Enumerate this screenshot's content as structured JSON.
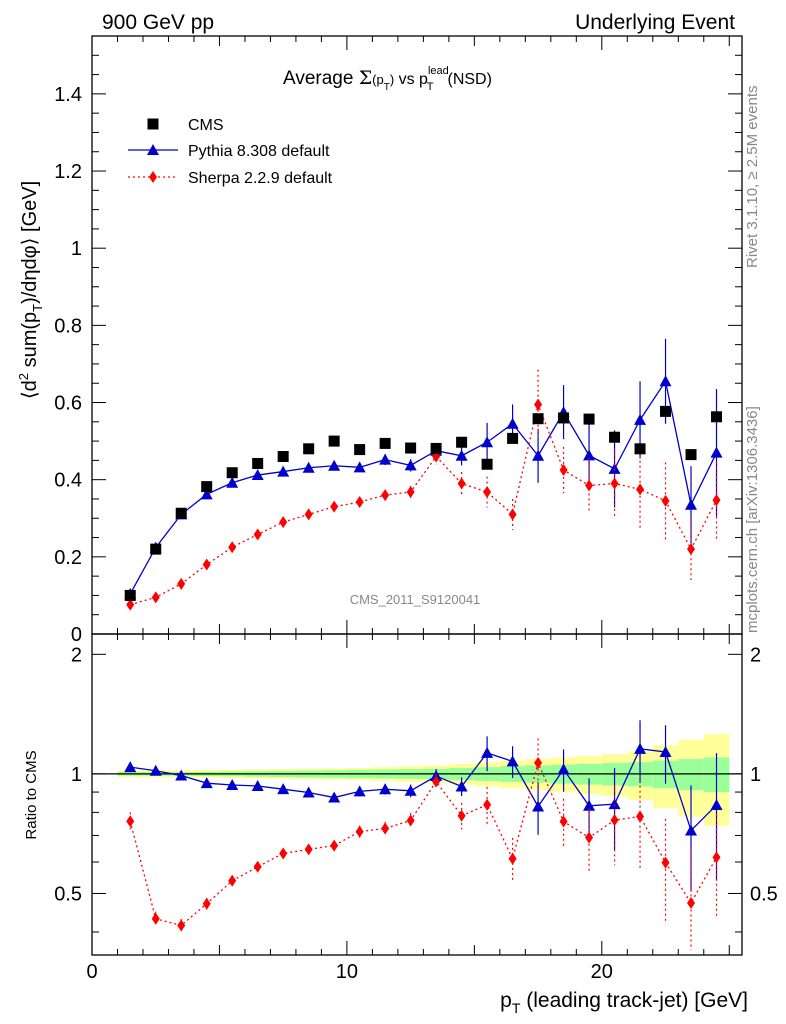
{
  "header": {
    "left": "900 GeV pp",
    "right": "Underlying Event"
  },
  "side_labels": {
    "top": "Rivet 3.1.10, ≥ 2.5M events",
    "bottom": "mcplots.cern.ch [arXiv:1306.3436]"
  },
  "watermark": "CMS_2011_S9120041",
  "chart_data": {
    "type": "scatter",
    "title": "Average Σ(pT) vs pT^lead (NSD)",
    "xlabel": "pT (leading track-jet) [GeV]",
    "ylabel": "⟨d² sum(pT)/dηdφ⟩ [GeV]",
    "ratio_ylabel": "Ratio to CMS",
    "xlim": [
      0,
      25.5
    ],
    "ylim": [
      0,
      1.55
    ],
    "ratio_ylim": [
      0.35,
      2.25
    ],
    "x_ticks": [
      0,
      10,
      20
    ],
    "y_ticks": [
      0,
      0.2,
      0.4,
      0.6,
      0.8,
      1,
      1.2,
      1.4
    ],
    "ratio_ticks": [
      0.5,
      1,
      2
    ],
    "legend_position": "top-left",
    "x": [
      1.5,
      2.5,
      3.5,
      4.5,
      5.5,
      6.5,
      7.5,
      8.5,
      9.5,
      10.5,
      11.5,
      12.5,
      13.5,
      14.5,
      15.5,
      16.5,
      17.5,
      18.5,
      19.5,
      20.5,
      21.5,
      22.5,
      23.5,
      24.5
    ],
    "series": [
      {
        "name": "CMS",
        "color": "#000000",
        "marker": "square",
        "values": [
          0.1,
          0.22,
          0.313,
          0.382,
          0.418,
          0.442,
          0.46,
          0.48,
          0.5,
          0.478,
          0.494,
          0.482,
          0.481,
          0.497,
          0.44,
          0.507,
          0.558,
          0.56,
          0.557,
          0.51,
          0.48,
          0.577,
          0.465,
          0.563
        ],
        "band_mc": [
          0.01,
          0.01,
          0.01,
          0.012,
          0.014,
          0.016,
          0.018,
          0.02,
          0.022,
          0.024,
          0.026,
          0.028,
          0.03,
          0.035,
          0.04,
          0.045,
          0.05,
          0.055,
          0.06,
          0.065,
          0.07,
          0.08,
          0.09,
          0.1
        ],
        "band_total": [
          0.02,
          0.02,
          0.02,
          0.022,
          0.024,
          0.026,
          0.028,
          0.03,
          0.032,
          0.035,
          0.04,
          0.045,
          0.05,
          0.06,
          0.07,
          0.08,
          0.09,
          0.1,
          0.11,
          0.12,
          0.14,
          0.18,
          0.22,
          0.26
        ]
      },
      {
        "name": "Pythia 8.308 default",
        "color": "#0000cc",
        "marker": "triangle",
        "line": "solid",
        "values": [
          0.104,
          0.224,
          0.31,
          0.362,
          0.392,
          0.412,
          0.421,
          0.431,
          0.436,
          0.432,
          0.452,
          0.437,
          0.475,
          0.462,
          0.497,
          0.545,
          0.462,
          0.575,
          0.463,
          0.428,
          0.555,
          0.655,
          0.335,
          0.47
        ],
        "errors": [
          0.003,
          0.004,
          0.005,
          0.005,
          0.006,
          0.007,
          0.008,
          0.009,
          0.01,
          0.012,
          0.014,
          0.016,
          0.02,
          0.025,
          0.05,
          0.05,
          0.07,
          0.07,
          0.08,
          0.1,
          0.1,
          0.11,
          0.1,
          0.165
        ]
      },
      {
        "name": "Sherpa 2.2.9 default",
        "color": "#ff0000",
        "marker": "diamond",
        "line": "dotted",
        "values": [
          0.076,
          0.095,
          0.13,
          0.18,
          0.225,
          0.258,
          0.29,
          0.31,
          0.33,
          0.342,
          0.36,
          0.368,
          0.46,
          0.39,
          0.368,
          0.31,
          0.595,
          0.425,
          0.385,
          0.39,
          0.375,
          0.345,
          0.22,
          0.347
        ],
        "errors": [
          0.004,
          0.004,
          0.005,
          0.006,
          0.006,
          0.007,
          0.008,
          0.009,
          0.01,
          0.012,
          0.014,
          0.016,
          0.02,
          0.03,
          0.04,
          0.04,
          0.09,
          0.06,
          0.07,
          0.09,
          0.1,
          0.1,
          0.08,
          0.1
        ]
      }
    ]
  }
}
